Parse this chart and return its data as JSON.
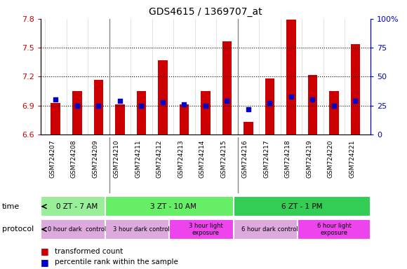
{
  "title": "GDS4615 / 1369707_at",
  "samples": [
    "GSM724207",
    "GSM724208",
    "GSM724209",
    "GSM724210",
    "GSM724211",
    "GSM724212",
    "GSM724213",
    "GSM724214",
    "GSM724215",
    "GSM724216",
    "GSM724217",
    "GSM724218",
    "GSM724219",
    "GSM724220",
    "GSM724221"
  ],
  "red_values": [
    6.93,
    7.05,
    7.17,
    6.91,
    7.05,
    7.37,
    6.91,
    7.05,
    7.57,
    6.73,
    7.18,
    7.79,
    7.22,
    7.05,
    7.54
  ],
  "blue_values": [
    30,
    25,
    25,
    29,
    25,
    28,
    26,
    25,
    29,
    22,
    27,
    33,
    30,
    25,
    29
  ],
  "ylim": [
    6.6,
    7.8
  ],
  "yticks": [
    6.6,
    6.9,
    7.2,
    7.5,
    7.8
  ],
  "y2lim": [
    0,
    100
  ],
  "y2ticks": [
    0,
    25,
    50,
    75,
    100
  ],
  "y2ticklabels": [
    "0",
    "25",
    "50",
    "75",
    "100%"
  ],
  "hlines": [
    6.9,
    7.2,
    7.5
  ],
  "red_color": "#cc0000",
  "blue_color": "#0000cc",
  "bar_bottom": 6.6,
  "time_groups": [
    {
      "label": "0 ZT - 7 AM",
      "start": 0,
      "end": 3,
      "color": "#99ee99"
    },
    {
      "label": "3 ZT - 10 AM",
      "start": 3,
      "end": 9,
      "color": "#66ee66"
    },
    {
      "label": "6 ZT - 1 PM",
      "start": 9,
      "end": 15,
      "color": "#33cc55"
    }
  ],
  "protocol_groups": [
    {
      "label": "0 hour dark  control",
      "start": 0,
      "end": 3,
      "color": "#ddaadd"
    },
    {
      "label": "3 hour dark control",
      "start": 3,
      "end": 6,
      "color": "#ddaadd"
    },
    {
      "label": "3 hour light\nexposure",
      "start": 6,
      "end": 9,
      "color": "#ee44ee"
    },
    {
      "label": "6 hour dark control",
      "start": 9,
      "end": 12,
      "color": "#ddaadd"
    },
    {
      "label": "6 hour light\nexposure",
      "start": 12,
      "end": 15,
      "color": "#ee44ee"
    }
  ],
  "legend_red": "transformed count",
  "legend_blue": "percentile rank within the sample",
  "bar_width": 0.45,
  "plot_bg": "#ffffff"
}
